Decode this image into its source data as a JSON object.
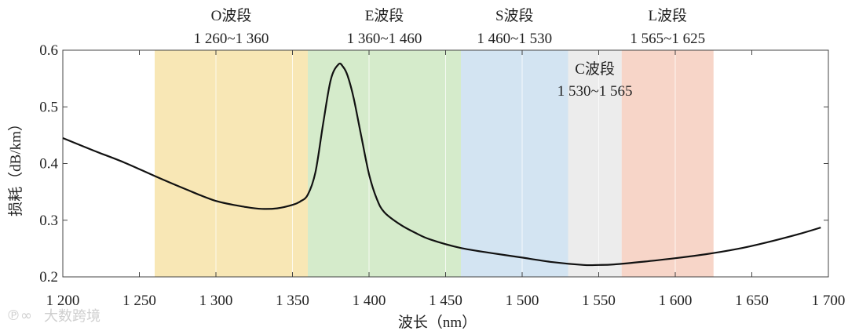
{
  "chart_data": {
    "type": "line",
    "xlabel": "波长（nm）",
    "ylabel": "损耗（dB/km）",
    "xlim": [
      1200,
      1700
    ],
    "ylim": [
      0.2,
      0.6
    ],
    "x_ticks": [
      1200,
      1250,
      1300,
      1350,
      1400,
      1450,
      1500,
      1550,
      1600,
      1650,
      1700
    ],
    "x_tick_labels": [
      "1 200",
      "1 250",
      "1 300",
      "1 350",
      "1 400",
      "1 450",
      "1 500",
      "1 550",
      "1 600",
      "1 650",
      "1 700"
    ],
    "y_ticks": [
      0.2,
      0.3,
      0.4,
      0.5,
      0.6
    ],
    "y_tick_labels": [
      "0.2",
      "0.3",
      "0.4",
      "0.5",
      "0.6"
    ],
    "grid": "vertical",
    "bands": [
      {
        "name": "O波段",
        "range_label": "1 260~1 360",
        "start": 1260,
        "end": 1360,
        "color": "#f8e7b5"
      },
      {
        "name": "E波段",
        "range_label": "1 360~1 460",
        "start": 1360,
        "end": 1460,
        "color": "#d5ebcb"
      },
      {
        "name": "S波段",
        "range_label": "1 460~1 530",
        "start": 1460,
        "end": 1530,
        "color": "#d3e4f2"
      },
      {
        "name": "C波段",
        "range_label": "1 530~1 565",
        "start": 1530,
        "end": 1565,
        "color": "#ececec"
      },
      {
        "name": "L波段",
        "range_label": "1 565~1 625",
        "start": 1565,
        "end": 1625,
        "color": "#f7d5c8"
      }
    ],
    "series": [
      {
        "color": "#111111",
        "x": [
          1200,
          1220,
          1240,
          1260,
          1280,
          1300,
          1320,
          1330,
          1340,
          1350,
          1355,
          1360,
          1365,
          1370,
          1375,
          1380,
          1383,
          1386,
          1390,
          1395,
          1400,
          1405,
          1410,
          1420,
          1430,
          1440,
          1460,
          1480,
          1500,
          1520,
          1540,
          1550,
          1560,
          1580,
          1600,
          1620,
          1640,
          1660,
          1680,
          1695
        ],
        "y": [
          0.445,
          0.423,
          0.402,
          0.378,
          0.355,
          0.334,
          0.323,
          0.32,
          0.321,
          0.327,
          0.333,
          0.345,
          0.385,
          0.47,
          0.548,
          0.575,
          0.571,
          0.555,
          0.515,
          0.447,
          0.381,
          0.338,
          0.314,
          0.293,
          0.278,
          0.266,
          0.251,
          0.242,
          0.234,
          0.226,
          0.221,
          0.221,
          0.222,
          0.227,
          0.233,
          0.24,
          0.249,
          0.261,
          0.275,
          0.287
        ]
      }
    ]
  },
  "watermark": "大数跨境"
}
